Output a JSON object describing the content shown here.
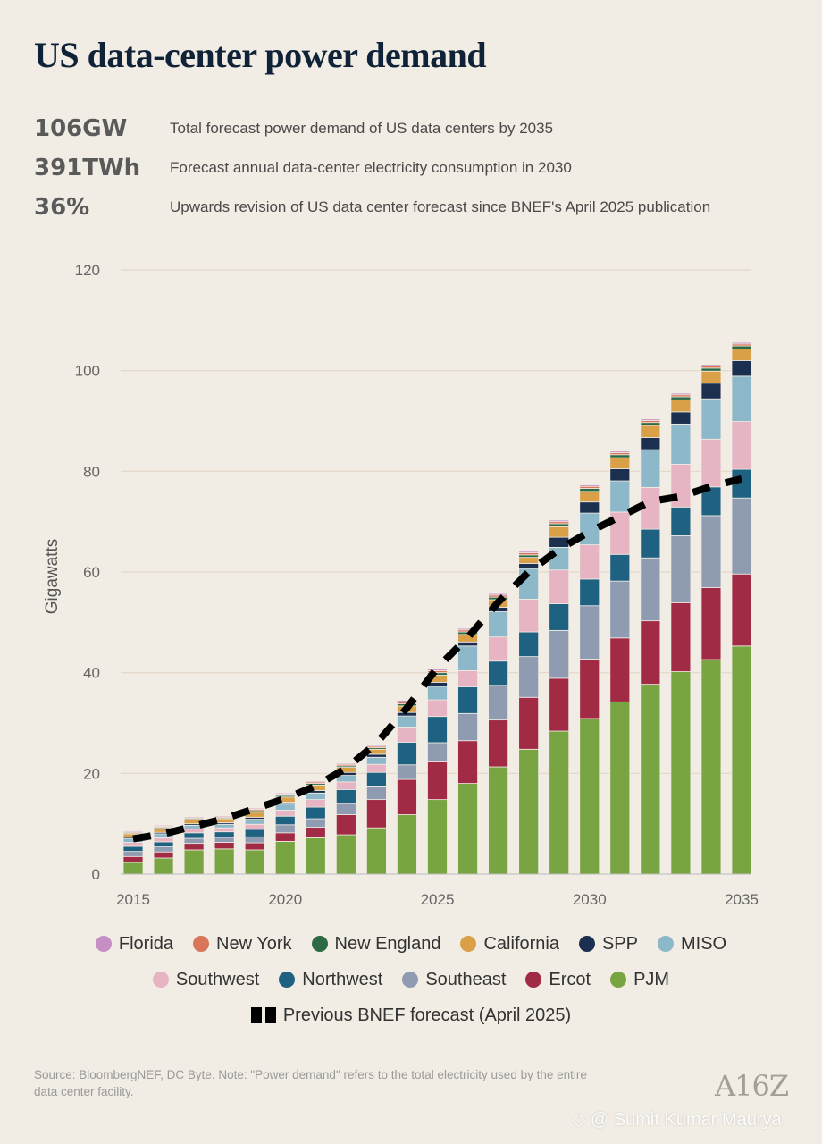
{
  "title": "US data-center power demand",
  "stats": [
    {
      "value": "106GW",
      "desc": "Total forecast power demand of US data centers by 2035"
    },
    {
      "value": "391TWh",
      "desc": "Forecast annual data-center electricity consumption in 2030"
    },
    {
      "value": "36%",
      "desc": "Upwards revision of US data center forecast since BNEF's April 2025 publication"
    }
  ],
  "source": "Source: BloombergNEF, DC Byte. Note: \"Power demand\" refers to the total electricity used by the entire data center facility.",
  "logo": "A16Z",
  "watermark": "◇ @ Sumit Kumar Maurya",
  "colors": {
    "Florida": "#c58fc4",
    "New York": "#d9765a",
    "New England": "#2c6a45",
    "California": "#d9a048",
    "SPP": "#1b2f4f",
    "MISO": "#8db8c9",
    "Southwest": "#e6b4c2",
    "Northwest": "#1e6180",
    "Southeast": "#8e9bb1",
    "Ercot": "#a12a45",
    "PJM": "#79a442",
    "grid": "#e3d8c6",
    "axis_text": "#666666"
  },
  "legend_rows": [
    [
      "Florida",
      "New York",
      "New England",
      "California",
      "SPP",
      "MISO"
    ],
    [
      "Southwest",
      "Northwest",
      "Southeast",
      "Ercot",
      "PJM"
    ]
  ],
  "legend_dashed_label": "Previous BNEF forecast (April 2025)",
  "chart_data": {
    "type": "bar",
    "stacked": true,
    "ylabel": "Gigawatts",
    "xlabel": "",
    "ylim": [
      0,
      120
    ],
    "yticks": [
      0,
      20,
      40,
      60,
      80,
      100,
      120
    ],
    "xticks": [
      2015,
      2020,
      2025,
      2030,
      2035
    ],
    "grid": true,
    "categories": [
      2015,
      2016,
      2017,
      2018,
      2019,
      2020,
      2021,
      2022,
      2023,
      2024,
      2025,
      2026,
      2027,
      2028,
      2029,
      2030,
      2031,
      2032,
      2033,
      2034,
      2035
    ],
    "series": [
      {
        "name": "PJM",
        "values": [
          2.3,
          3.2,
          4.8,
          5.0,
          4.8,
          6.5,
          7.2,
          7.8,
          9.2,
          11.8,
          14.8,
          18.0,
          21.3,
          24.8,
          28.4,
          30.9,
          34.2,
          37.7,
          40.2,
          42.6,
          45.3
        ]
      },
      {
        "name": "Ercot",
        "values": [
          1.2,
          1.2,
          1.3,
          1.3,
          1.4,
          1.7,
          2.1,
          4.0,
          5.6,
          7.0,
          7.5,
          8.5,
          9.3,
          10.3,
          10.5,
          11.8,
          12.7,
          12.6,
          13.7,
          14.3,
          14.3
        ]
      },
      {
        "name": "Southeast",
        "values": [
          1.0,
          1.0,
          1.0,
          1.0,
          1.2,
          1.6,
          1.7,
          2.2,
          2.7,
          2.9,
          3.8,
          5.4,
          6.9,
          8.1,
          9.5,
          10.6,
          11.3,
          12.5,
          13.3,
          14.3,
          15.1
        ]
      },
      {
        "name": "Northwest",
        "values": [
          1.0,
          1.0,
          1.1,
          1.1,
          1.5,
          1.7,
          2.3,
          2.8,
          2.7,
          4.5,
          5.2,
          5.3,
          4.8,
          4.9,
          5.3,
          5.3,
          5.3,
          5.7,
          5.7,
          5.7,
          5.7
        ]
      },
      {
        "name": "Southwest",
        "values": [
          0.8,
          0.8,
          0.8,
          0.8,
          1.0,
          1.2,
          1.5,
          1.5,
          1.6,
          3.0,
          3.3,
          3.2,
          4.8,
          6.5,
          6.7,
          6.8,
          8.4,
          8.3,
          8.5,
          9.5,
          9.5
        ]
      },
      {
        "name": "MISO",
        "values": [
          0.7,
          0.8,
          0.7,
          0.7,
          1.0,
          1.2,
          1.3,
          1.3,
          1.4,
          2.2,
          2.7,
          4.9,
          5.0,
          6.1,
          4.5,
          6.3,
          6.2,
          7.5,
          8.0,
          8.0,
          9.0
        ]
      },
      {
        "name": "SPP",
        "values": [
          0.3,
          0.3,
          0.3,
          0.3,
          0.4,
          0.4,
          0.5,
          0.6,
          0.6,
          0.7,
          0.8,
          0.8,
          0.9,
          1.0,
          2.0,
          2.2,
          2.4,
          2.4,
          2.4,
          3.1,
          3.1
        ]
      },
      {
        "name": "California",
        "values": [
          0.7,
          0.8,
          0.8,
          0.8,
          1.0,
          1.0,
          1.1,
          1.0,
          1.0,
          1.3,
          1.4,
          1.5,
          1.5,
          1.2,
          2.1,
          2.1,
          2.2,
          2.4,
          2.4,
          2.4,
          2.3
        ]
      },
      {
        "name": "New England",
        "values": [
          0.2,
          0.2,
          0.2,
          0.2,
          0.3,
          0.3,
          0.3,
          0.3,
          0.3,
          0.4,
          0.5,
          0.5,
          0.5,
          0.5,
          0.6,
          0.6,
          0.6,
          0.6,
          0.6,
          0.6,
          0.6
        ]
      },
      {
        "name": "New York",
        "values": [
          0.2,
          0.2,
          0.2,
          0.2,
          0.3,
          0.3,
          0.3,
          0.3,
          0.3,
          0.4,
          0.4,
          0.4,
          0.4,
          0.4,
          0.4,
          0.4,
          0.4,
          0.4,
          0.4,
          0.4,
          0.4
        ]
      },
      {
        "name": "Florida",
        "values": [
          0.2,
          0.2,
          0.2,
          0.2,
          0.2,
          0.2,
          0.2,
          0.2,
          0.2,
          0.3,
          0.3,
          0.3,
          0.3,
          0.3,
          0.3,
          0.3,
          0.3,
          0.3,
          0.3,
          0.3,
          0.3
        ]
      }
    ],
    "previous_forecast": {
      "name": "Previous BNEF forecast (April 2025)",
      "style": "dashed",
      "x": [
        2015,
        2016,
        2017,
        2018,
        2019,
        2020,
        2021,
        2022,
        2023,
        2024,
        2025,
        2026,
        2027,
        2028,
        2029,
        2030,
        2031,
        2032,
        2033,
        2034,
        2035
      ],
      "y": [
        7.0,
        8.0,
        9.5,
        11.0,
        13.0,
        15.0,
        17.5,
        21.0,
        26.0,
        33.0,
        41.0,
        47.0,
        54.0,
        60.0,
        64.5,
        68.0,
        71.0,
        74.0,
        75.0,
        77.0,
        78.5
      ]
    },
    "legend_position": "bottom"
  }
}
